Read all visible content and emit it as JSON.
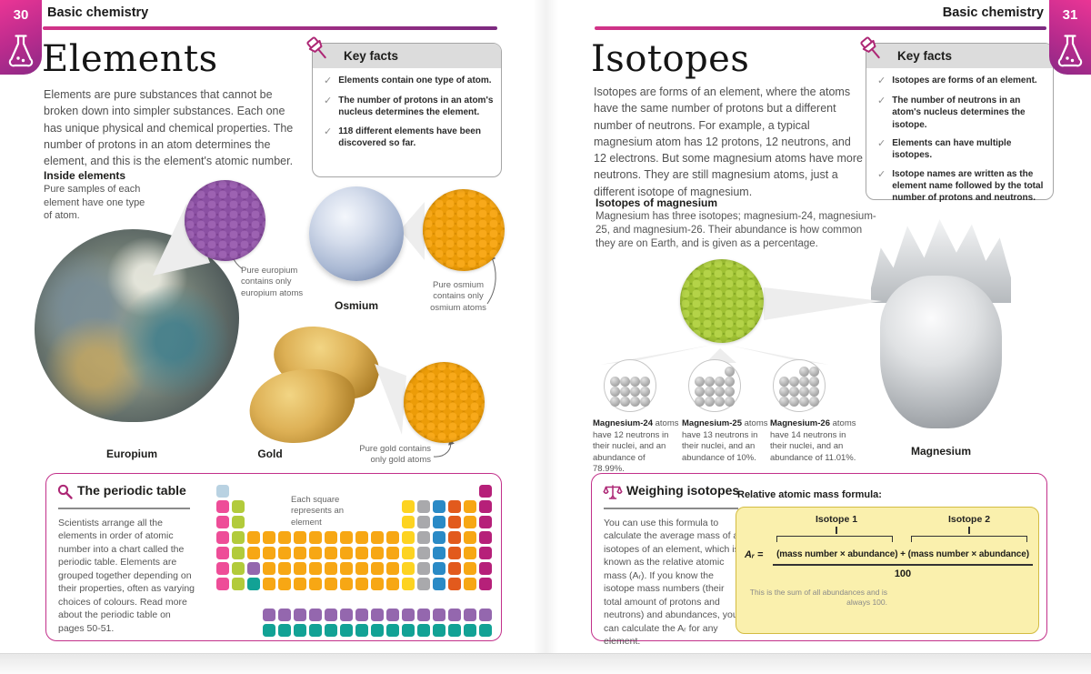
{
  "glyphs": {
    "check": "✓"
  },
  "page_left": {
    "page_number": "30",
    "section": "Basic chemistry",
    "title": "Elements",
    "intro": "Elements are pure substances that cannot be broken down into simpler substances. Each one has unique physical and chemical properties. The number of protons in an atom determines the element, and this is the element's atomic number.",
    "key_facts": {
      "title": "Key facts",
      "items": [
        "Elements contain one type of atom.",
        "The number of protons in an atom's nucleus determines the element.",
        "118 different elements have been discovered so far."
      ]
    },
    "inside": {
      "heading": "Inside elements",
      "body": "Pure samples of each element have one type of atom."
    },
    "captions": {
      "europium": "Pure europium contains only europium atoms",
      "osmium": "Pure osmium contains only osmium atoms",
      "gold": "Pure gold contains only gold atoms"
    },
    "labels": {
      "europium": "Europium",
      "osmium": "Osmium",
      "gold": "Gold"
    },
    "periodic_box": {
      "title": "The periodic table",
      "body": "Scientists arrange all the elements in order of atomic number into a chart called the periodic table. Elements are grouped together depending on their properties, often as varying choices of colours. Read more about the periodic table on pages 50-51.",
      "annotation": "Each square represents an element",
      "colors": {
        "h": "#b9d2e2",
        "p": "#ee4d98",
        "g": "#b2cb3b",
        "o": "#f7a714",
        "y": "#fdd321",
        "a": "#a9a9ac",
        "b": "#2a8ac6",
        "r": "#e25a1d",
        "m": "#b62079",
        "u": "#9467ae",
        "t": "#12a295"
      },
      "grid": [
        "h................m",
        "pg..........yabrom",
        "pg..........yabrom",
        "pgooooooooooyabrom",
        "pgooooooooooyabrom",
        "pguoooooooooyabrom",
        "pgtoooooooooyabrom",
        "...uuuuuuuuuuuuuuu",
        "...ttttttttttttttt"
      ]
    }
  },
  "page_right": {
    "page_number": "31",
    "section": "Basic chemistry",
    "title": "Isotopes",
    "intro": "Isotopes are forms of an element, where the atoms have the same number of protons but a different number of neutrons. For example, a typical magnesium atom has 12 protons, 12 neutrons, and 12 electrons. But some magnesium atoms have more neutrons. They are still magnesium atoms, just a different isotope of magnesium.",
    "key_facts": {
      "title": "Key facts",
      "items": [
        "Isotopes are forms of an element.",
        "The number of neutrons in an atom's nucleus determines the isotope.",
        "Elements can have multiple isotopes.",
        "Isotope names are written as the element name followed by the total number of protons and neutrons."
      ]
    },
    "isotopes_mg": {
      "heading": "Isotopes of magnesium",
      "body": "Magnesium has three isotopes; magnesium-24, magnesium-25, and magnesium-26. Their abundance is how common they are on Earth, and is given as a percentage."
    },
    "isotope_items": [
      {
        "name": "Magnesium-24",
        "rest": " atoms have 12 neutrons in their nuclei, and an abundance of 78.99%.",
        "neutrons": 12
      },
      {
        "name": "Magnesium-25",
        "rest": " atoms have 13 neutrons in their nuclei, and an abundance of 10%.",
        "neutrons": 13
      },
      {
        "name": "Magnesium-26",
        "rest": " atoms have 14 neutrons in their nuclei, and an abundance of 11.01%.",
        "neutrons": 14
      }
    ],
    "magnesium_label": "Magnesium",
    "weighing": {
      "title": "Weighing isotopes",
      "body": "You can use this formula to calculate the average mass of all isotopes of an element, which is known as the relative atomic mass (Aᵣ). If you know the isotope mass numbers (their total amount of protons and neutrons) and abundances, you can calculate the Aᵣ for any element.",
      "formula_heading": "Relative atomic mass formula:",
      "isotope1_label": "Isotope 1",
      "isotope2_label": "Isotope 2",
      "ar": "Aᵣ",
      "equals": "=",
      "term1": "(mass number × abundance)",
      "plus": "+",
      "term2": "(mass number × abundance)",
      "denominator": "100",
      "note": "This is the sum of all abundances and is always 100."
    }
  }
}
